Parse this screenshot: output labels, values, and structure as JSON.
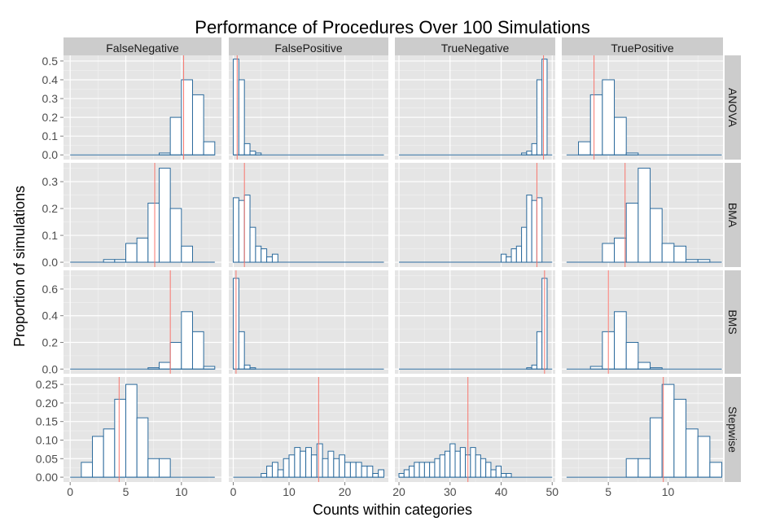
{
  "chart_data": {
    "type": "bar",
    "title": "Performance of Procedures Over 100 Simulations",
    "xlabel": "Counts within categories",
    "ylabel": "Proportion of simulations",
    "columns": [
      "FalseNegative",
      "FalsePositive",
      "TrueNegative",
      "TruePositive"
    ],
    "rows": [
      "ANOVA",
      "BMA",
      "BMS",
      "Stepwise"
    ],
    "x_ranges": [
      [
        -0.6,
        13.6
      ],
      [
        -0.8,
        27.8
      ],
      [
        19.2,
        50.6
      ],
      [
        1.1,
        14.6
      ]
    ],
    "x_ticks": [
      [
        0,
        5,
        10
      ],
      [
        0,
        10,
        20
      ],
      [
        20,
        30,
        40,
        50
      ],
      [
        5,
        10
      ]
    ],
    "y_ranges": [
      [
        -0.025,
        0.53
      ],
      [
        -0.018,
        0.37
      ],
      [
        -0.035,
        0.74
      ],
      [
        -0.013,
        0.27
      ]
    ],
    "y_ticks": [
      {
        "values": [
          0,
          0.1,
          0.2,
          0.3,
          0.4,
          0.5
        ],
        "labels": [
          "0.0",
          "0.1",
          "0.2",
          "0.3",
          "0.4",
          "0.5"
        ]
      },
      {
        "values": [
          0,
          0.1,
          0.2,
          0.3
        ],
        "labels": [
          "0.0",
          "0.1",
          "0.2",
          "0.3"
        ]
      },
      {
        "values": [
          0,
          0.2,
          0.4,
          0.6
        ],
        "labels": [
          "0.0",
          "0.2",
          "0.4",
          "0.6"
        ]
      },
      {
        "values": [
          0,
          0.05,
          0.1,
          0.15,
          0.2,
          0.25
        ],
        "labels": [
          "0.00",
          "0.05",
          "0.10",
          "0.15",
          "0.20",
          "0.25"
        ]
      }
    ],
    "bar_color": "#2b6a9c",
    "mean_line_color": "#f8766d",
    "panels": [
      {
        "row": "ANOVA",
        "col": "FalseNegative",
        "bin_width": 1,
        "x_start": 0,
        "x_end": 13,
        "values": [
          0,
          0,
          0,
          0,
          0,
          0,
          0,
          0,
          0.01,
          0.2,
          0.4,
          0.32,
          0.07
        ],
        "mean": 10.2
      },
      {
        "row": "ANOVA",
        "col": "FalsePositive",
        "bin_width": 1,
        "x_start": 0,
        "x_end": 27,
        "values": [
          0.51,
          0.4,
          0.06,
          0.02,
          0.01,
          0,
          0,
          0,
          0,
          0,
          0,
          0,
          0,
          0,
          0,
          0,
          0,
          0,
          0,
          0,
          0,
          0,
          0,
          0,
          0,
          0,
          0
        ],
        "mean": 0.7
      },
      {
        "row": "ANOVA",
        "col": "TrueNegative",
        "bin_width": 1,
        "x_start": 20,
        "x_end": 50,
        "values": [
          0,
          0,
          0,
          0,
          0,
          0,
          0,
          0,
          0,
          0,
          0,
          0,
          0,
          0,
          0,
          0,
          0,
          0,
          0,
          0,
          0,
          0,
          0,
          0,
          0.01,
          0.02,
          0.06,
          0.4,
          0.51,
          0
        ],
        "mean": 48.3
      },
      {
        "row": "ANOVA",
        "col": "TruePositive",
        "bin_width": 1,
        "x_start": 1.5,
        "x_end": 14.5,
        "values": [
          0,
          0.07,
          0.32,
          0.4,
          0.2,
          0.01,
          0,
          0,
          0,
          0,
          0,
          0,
          0
        ],
        "mean": 3.8
      },
      {
        "row": "BMA",
        "col": "FalseNegative",
        "bin_width": 1,
        "x_start": 0,
        "x_end": 13,
        "values": [
          0,
          0,
          0,
          0.01,
          0.01,
          0.07,
          0.09,
          0.22,
          0.35,
          0.2,
          0.06,
          0,
          0
        ],
        "mean": 7.6
      },
      {
        "row": "BMA",
        "col": "FalsePositive",
        "bin_width": 1,
        "x_start": 0,
        "x_end": 27,
        "values": [
          0.24,
          0.23,
          0.25,
          0.13,
          0.06,
          0.05,
          0.02,
          0.03,
          0,
          0,
          0,
          0,
          0,
          0,
          0,
          0,
          0,
          0,
          0,
          0,
          0,
          0,
          0,
          0,
          0,
          0,
          0
        ],
        "mean": 2.0
      },
      {
        "row": "BMA",
        "col": "TrueNegative",
        "bin_width": 1,
        "x_start": 20,
        "x_end": 50,
        "values": [
          0,
          0,
          0,
          0,
          0,
          0,
          0,
          0,
          0,
          0,
          0,
          0,
          0,
          0,
          0,
          0,
          0,
          0,
          0,
          0,
          0.03,
          0.02,
          0.05,
          0.06,
          0.13,
          0.25,
          0.23,
          0.24,
          0,
          0
        ],
        "mean": 47.0
      },
      {
        "row": "BMA",
        "col": "TruePositive",
        "bin_width": 1,
        "x_start": 1.5,
        "x_end": 14.5,
        "values": [
          0,
          0,
          0,
          0.07,
          0.09,
          0.22,
          0.35,
          0.2,
          0.07,
          0.06,
          0.01,
          0.01,
          0
        ],
        "mean": 6.4
      },
      {
        "row": "BMS",
        "col": "FalseNegative",
        "bin_width": 1,
        "x_start": 0,
        "x_end": 13,
        "values": [
          0,
          0,
          0,
          0,
          0,
          0,
          0,
          0.01,
          0.05,
          0.2,
          0.43,
          0.28,
          0.02
        ],
        "mean": 9.0
      },
      {
        "row": "BMS",
        "col": "FalsePositive",
        "bin_width": 1,
        "x_start": 0,
        "x_end": 27,
        "values": [
          0.68,
          0.28,
          0.03,
          0.01,
          0,
          0,
          0,
          0,
          0,
          0,
          0,
          0,
          0,
          0,
          0,
          0,
          0,
          0,
          0,
          0,
          0,
          0,
          0,
          0,
          0,
          0,
          0
        ],
        "mean": 0.5
      },
      {
        "row": "BMS",
        "col": "TrueNegative",
        "bin_width": 1,
        "x_start": 20,
        "x_end": 50,
        "values": [
          0,
          0,
          0,
          0,
          0,
          0,
          0,
          0,
          0,
          0,
          0,
          0,
          0,
          0,
          0,
          0,
          0,
          0,
          0,
          0,
          0,
          0,
          0,
          0,
          0,
          0.01,
          0.03,
          0.28,
          0.68,
          0
        ],
        "mean": 48.5
      },
      {
        "row": "BMS",
        "col": "TruePositive",
        "bin_width": 1,
        "x_start": 1.5,
        "x_end": 14.5,
        "values": [
          0,
          0,
          0.02,
          0.28,
          0.43,
          0.2,
          0.05,
          0.01,
          0,
          0,
          0,
          0,
          0
        ],
        "mean": 5.0
      },
      {
        "row": "Stepwise",
        "col": "FalseNegative",
        "bin_width": 1,
        "x_start": 0,
        "x_end": 13,
        "values": [
          0,
          0.04,
          0.11,
          0.13,
          0.21,
          0.25,
          0.16,
          0.05,
          0.05,
          0,
          0,
          0,
          0
        ],
        "mean": 4.4
      },
      {
        "row": "Stepwise",
        "col": "FalsePositive",
        "bin_width": 1,
        "x_start": 0,
        "x_end": 27,
        "values": [
          0,
          0,
          0,
          0,
          0,
          0.01,
          0.03,
          0.04,
          0.02,
          0.05,
          0.06,
          0.08,
          0.07,
          0.08,
          0.06,
          0.09,
          0.05,
          0.07,
          0.05,
          0.06,
          0.04,
          0.04,
          0.04,
          0.03,
          0.03,
          0.01,
          0.02
        ],
        "mean": 15.3
      },
      {
        "row": "Stepwise",
        "col": "TrueNegative",
        "bin_width": 1,
        "x_start": 20,
        "x_end": 50,
        "values": [
          0.01,
          0.02,
          0.03,
          0.04,
          0.04,
          0.04,
          0.04,
          0.05,
          0.06,
          0.07,
          0.09,
          0.07,
          0.08,
          0.06,
          0.08,
          0.06,
          0.05,
          0.04,
          0.02,
          0.03,
          0.01,
          0.01,
          0,
          0,
          0,
          0,
          0,
          0,
          0,
          0
        ],
        "mean": 33.5
      },
      {
        "row": "Stepwise",
        "col": "TruePositive",
        "bin_width": 1,
        "x_start": 1.5,
        "x_end": 14.5,
        "values": [
          0,
          0,
          0,
          0,
          0,
          0.05,
          0.05,
          0.16,
          0.25,
          0.21,
          0.13,
          0.11,
          0.04
        ],
        "mean": 9.6
      }
    ],
    "grid": true,
    "legend": "none"
  }
}
